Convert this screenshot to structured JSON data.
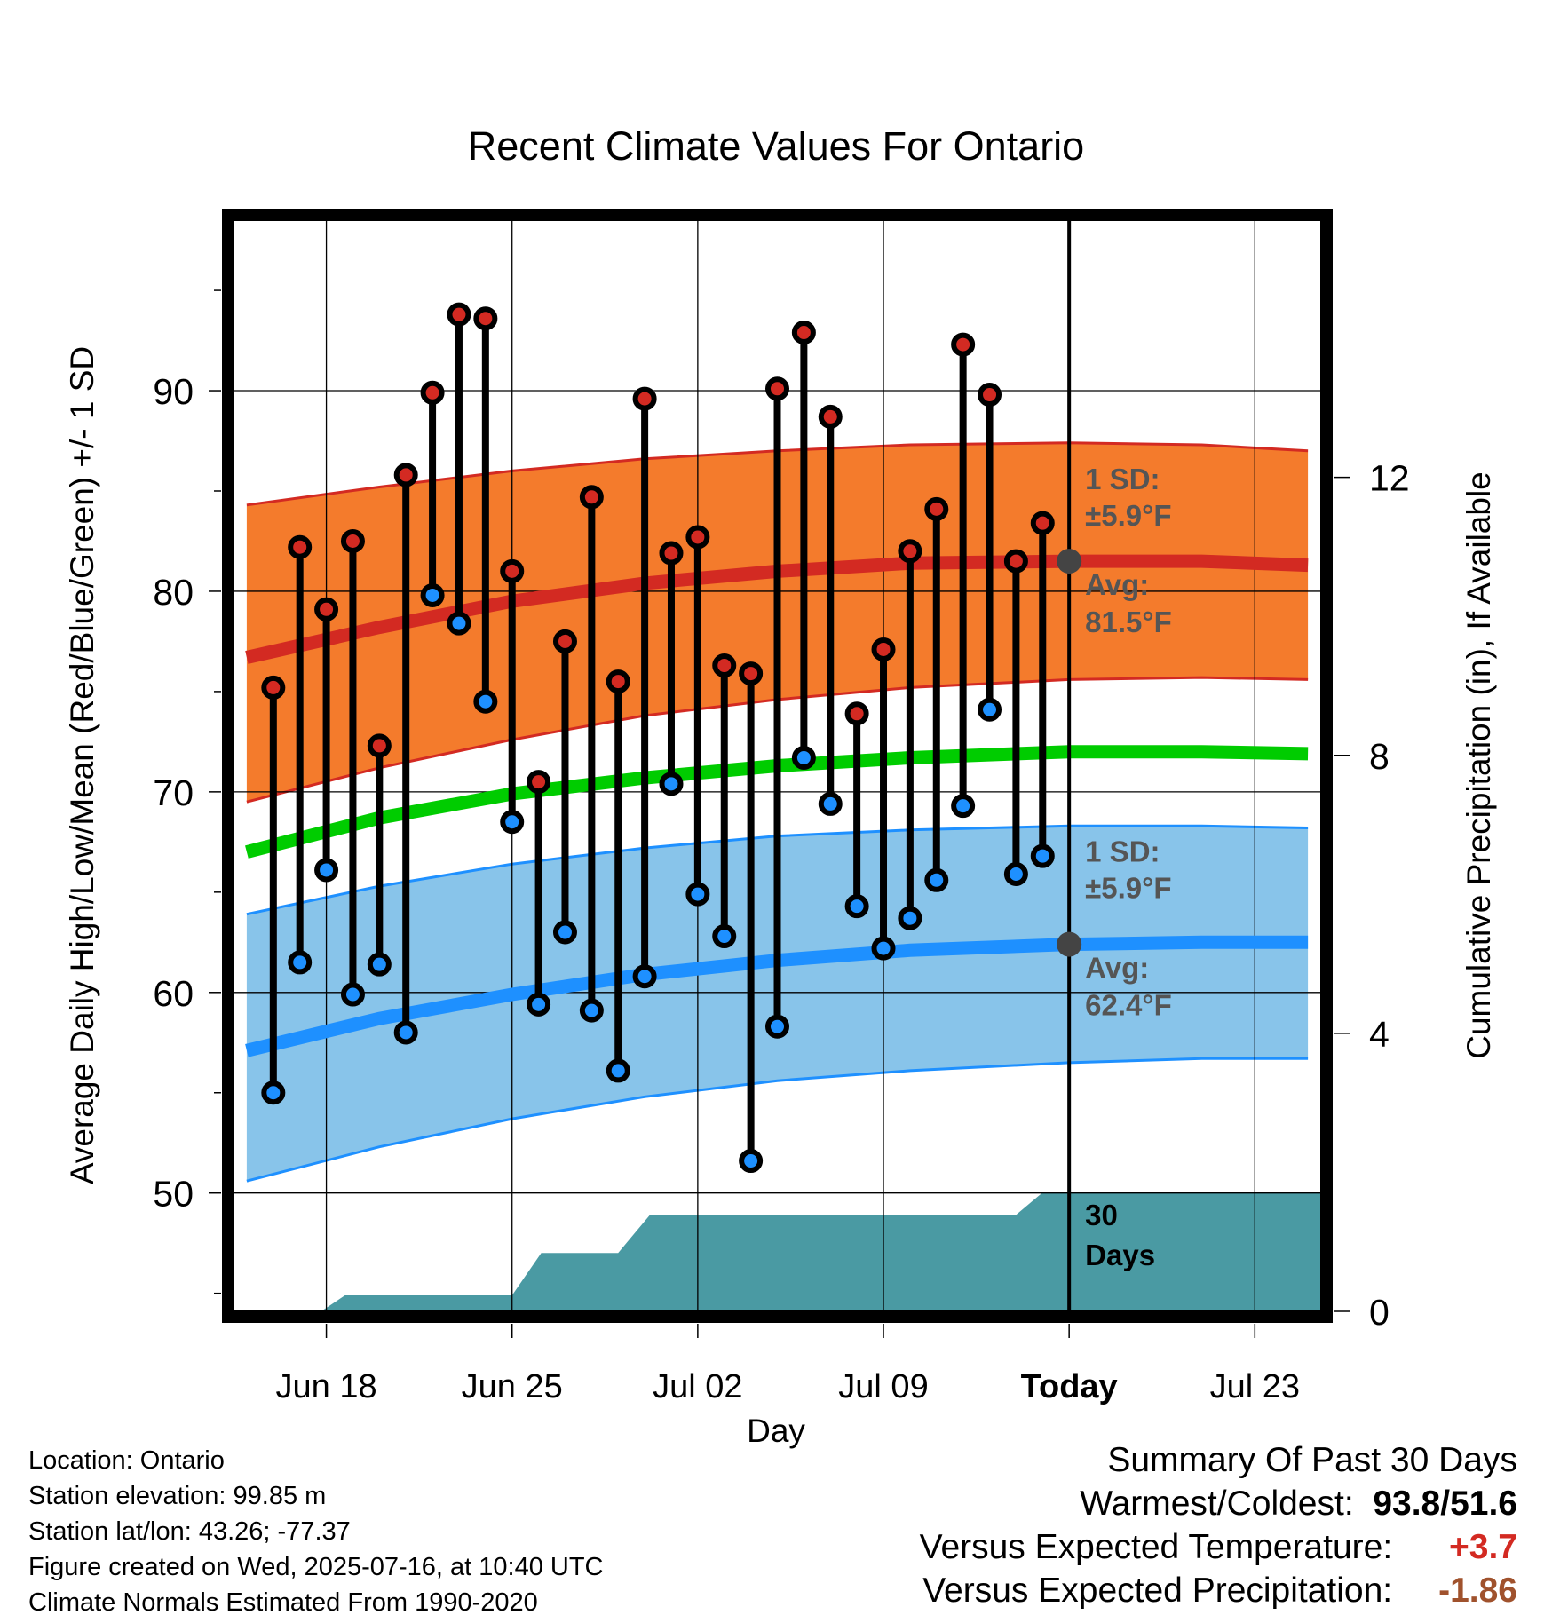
{
  "chart_data": {
    "type": "line",
    "title": "Recent Climate Values For Ontario",
    "xlabel": "Day",
    "ylabel": "Average Daily High/Low/Mean (Red/Blue/Green) +/- 1 SD",
    "y2label": "Cumulative Precipitation (in), If Available",
    "x_tick_labels": [
      "Jun 18",
      "Jun 25",
      "Jul 02",
      "Jul 09",
      "Today",
      "Jul 23"
    ],
    "x_tick_days": [
      3,
      10,
      17,
      24,
      31,
      38
    ],
    "x_range_days": [
      -0.5,
      40.5
    ],
    "ylim": [
      44.1,
      98.5
    ],
    "y_ticks": [
      50,
      60,
      70,
      80,
      90
    ],
    "y2lim": [
      0,
      15.7
    ],
    "y2_ticks": [
      0,
      4,
      8,
      12
    ],
    "grid": true,
    "today_day": 31,
    "normals": {
      "days": [
        0,
        5,
        10,
        15,
        20,
        25,
        31,
        36,
        40
      ],
      "high_avg": [
        76.7,
        78.2,
        79.5,
        80.4,
        81.0,
        81.4,
        81.5,
        81.5,
        81.3
      ],
      "high_sd_upper": [
        84.3,
        85.2,
        86.0,
        86.6,
        87.0,
        87.3,
        87.4,
        87.3,
        87.0
      ],
      "high_sd_lower": [
        69.5,
        71.2,
        72.6,
        73.8,
        74.6,
        75.2,
        75.6,
        75.7,
        75.6
      ],
      "mean_avg": [
        67.0,
        68.7,
        69.9,
        70.7,
        71.3,
        71.7,
        72.0,
        72.0,
        71.9
      ],
      "low_avg": [
        57.1,
        58.7,
        59.9,
        60.9,
        61.6,
        62.1,
        62.4,
        62.5,
        62.5
      ],
      "low_sd_upper": [
        63.9,
        65.3,
        66.4,
        67.2,
        67.8,
        68.1,
        68.3,
        68.3,
        68.2
      ],
      "low_sd_lower": [
        50.6,
        52.3,
        53.7,
        54.8,
        55.6,
        56.1,
        56.5,
        56.7,
        56.7
      ],
      "high_sd_label": "1 SD:",
      "high_sd_value": "±5.9°F",
      "high_avg_label": "Avg:",
      "high_avg_value": "81.5°F",
      "low_sd_label": "1 SD:",
      "low_sd_value": "±5.9°F",
      "low_avg_label": "Avg:",
      "low_avg_value": "62.4°F"
    },
    "observed": {
      "days": [
        1,
        2,
        3,
        4,
        5,
        6,
        7,
        8,
        9,
        10,
        11,
        12,
        13,
        14,
        15,
        16,
        17,
        18,
        19,
        20,
        21,
        22,
        23,
        24,
        25,
        26,
        27,
        28,
        29,
        30
      ],
      "highs": [
        75.2,
        82.2,
        79.1,
        82.5,
        72.3,
        85.8,
        89.9,
        93.8,
        93.6,
        81.0,
        70.5,
        77.5,
        84.7,
        75.5,
        89.6,
        81.9,
        82.7,
        76.3,
        75.9,
        90.1,
        92.9,
        88.7,
        73.9,
        77.1,
        82.0,
        84.1,
        92.3,
        89.8,
        81.5,
        83.4
      ],
      "lows": [
        55.0,
        61.5,
        66.1,
        59.9,
        61.4,
        58.0,
        79.8,
        78.4,
        74.5,
        68.5,
        59.4,
        63.0,
        59.1,
        56.1,
        60.8,
        70.4,
        64.9,
        62.8,
        51.6,
        58.3,
        71.7,
        69.4,
        64.3,
        62.2,
        63.7,
        65.6,
        69.3,
        74.1,
        65.9,
        66.8
      ]
    },
    "precip": {
      "days": [
        -0.5,
        2.8,
        3.7,
        10.0,
        11.1,
        14.0,
        15.2,
        29.0,
        30.0,
        40.5
      ],
      "cumulative_in": [
        0.0,
        0.0,
        0.23,
        0.23,
        0.84,
        0.84,
        1.39,
        1.39,
        1.71,
        1.71
      ],
      "label_line1": "30",
      "label_line2": "Days"
    },
    "colors": {
      "high_band": "#f47b2c",
      "high_line": "#d32a22",
      "low_band": "#88c4ea",
      "low_line": "#1e90ff",
      "mean_line": "#00cc00",
      "precip": "#4a9aa3",
      "high_marker": "#d32a22",
      "low_marker": "#1e90ff",
      "today_marker": "#444444",
      "annotation": "#555555"
    }
  },
  "footer": {
    "location": "Location: Ontario",
    "elevation": "Station elevation: 99.85 m",
    "latlon": "Station lat/lon: 43.26; -77.37",
    "created": "Figure created on Wed, 2025-07-16, at 10:40 UTC",
    "normals": "Climate Normals Estimated From 1990-2020"
  },
  "summary": {
    "title": "Summary Of Past 30 Days",
    "warm_cold_label": "Warmest/Coldest:",
    "warmest": "93.8",
    "coldest": "51.6",
    "temp_label": "Versus Expected Temperature:",
    "temp_value": "+3.7",
    "temp_color": "#d32a22",
    "precip_label": "Versus Expected Precipitation:",
    "precip_value": "-1.86",
    "precip_color": "#a0522d"
  }
}
